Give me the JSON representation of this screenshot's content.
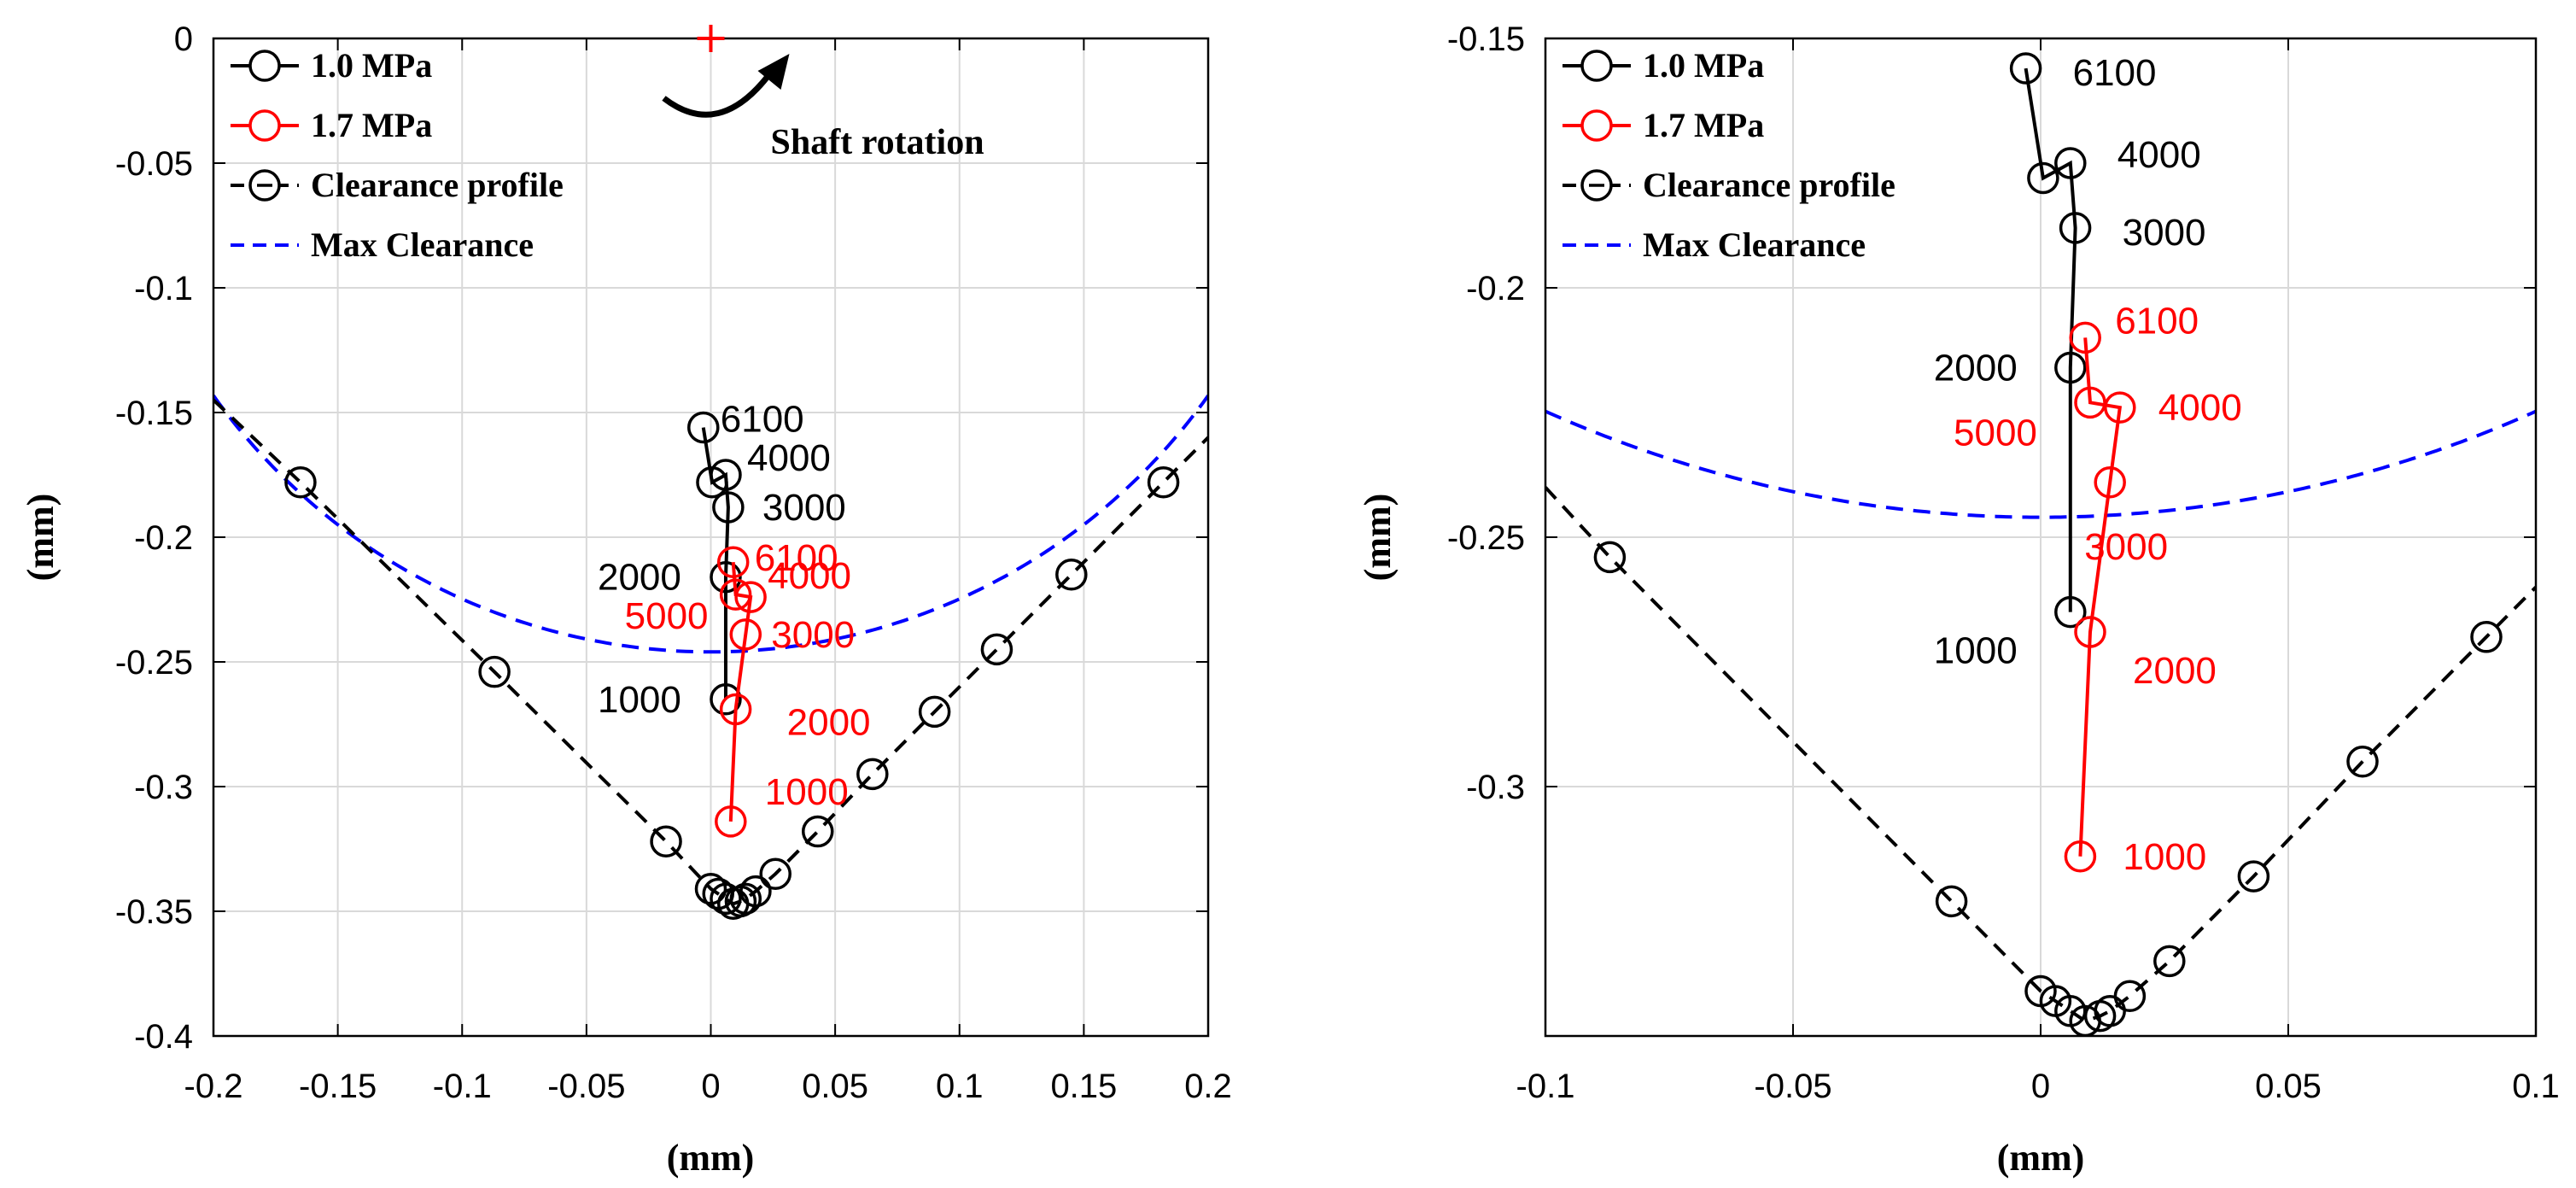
{
  "chart_data": [
    {
      "type": "line",
      "xlabel": "(mm)",
      "ylabel": "(mm)",
      "xlim": [
        -0.2,
        0.2
      ],
      "ylim": [
        -0.4,
        0
      ],
      "xticks": [
        -0.2,
        -0.15,
        -0.1,
        -0.05,
        0,
        0.05,
        0.1,
        0.15,
        0.2
      ],
      "xtick_labels": [
        "-0.2",
        "-0.15",
        "-0.1",
        "-0.05",
        "0",
        "0.05",
        "0.1",
        "0.15",
        "0.2"
      ],
      "yticks": [
        0,
        -0.05,
        -0.1,
        -0.15,
        -0.2,
        -0.25,
        -0.3,
        -0.35,
        -0.4
      ],
      "ytick_labels": [
        "0",
        "-0.05",
        "-0.1",
        "-0.15",
        "-0.2",
        "-0.25",
        "-0.3",
        "-0.35",
        "-0.4"
      ],
      "grid": true,
      "legend": [
        {
          "label": "1.0 MPa",
          "color": "#000000",
          "style": "solid-circle"
        },
        {
          "label": "1.7 MPa",
          "color": "#ff0000",
          "style": "solid-circle"
        },
        {
          "label": "Clearance profile",
          "color": "#000000",
          "style": "dashed-circle"
        },
        {
          "label": "Max Clearance",
          "color": "#0000ff",
          "style": "dashed"
        }
      ],
      "legend_position": "top-left",
      "series": [
        {
          "name": "1.0 MPa",
          "color": "#000000",
          "points": [
            {
              "x": 0.006,
              "y": -0.265,
              "label": "1000"
            },
            {
              "x": 0.006,
              "y": -0.216,
              "label": "2000"
            },
            {
              "x": 0.007,
              "y": -0.188,
              "label": "3000"
            },
            {
              "x": 0.006,
              "y": -0.175,
              "label": "4000"
            },
            {
              "x": 0.0005,
              "y": -0.178,
              "label": ""
            },
            {
              "x": -0.003,
              "y": -0.156,
              "label": "6100"
            }
          ]
        },
        {
          "name": "1.7 MPa",
          "color": "#ff0000",
          "points": [
            {
              "x": 0.008,
              "y": -0.314,
              "label": "1000"
            },
            {
              "x": 0.01,
              "y": -0.269,
              "label": "2000"
            },
            {
              "x": 0.014,
              "y": -0.239,
              "label": "3000"
            },
            {
              "x": 0.016,
              "y": -0.224,
              "label": "4000"
            },
            {
              "x": 0.01,
              "y": -0.223,
              "label": "5000"
            },
            {
              "x": 0.009,
              "y": -0.21,
              "label": "6100"
            }
          ]
        },
        {
          "name": "Clearance profile",
          "color": "#000000",
          "points": [
            {
              "x": -0.2,
              "y": -0.145
            },
            {
              "x": -0.165,
              "y": -0.178
            },
            {
              "x": -0.087,
              "y": -0.254
            },
            {
              "x": -0.018,
              "y": -0.322
            },
            {
              "x": 0.0,
              "y": -0.341
            },
            {
              "x": 0.003,
              "y": -0.343
            },
            {
              "x": 0.006,
              "y": -0.345
            },
            {
              "x": 0.009,
              "y": -0.347
            },
            {
              "x": 0.012,
              "y": -0.346
            },
            {
              "x": 0.014,
              "y": -0.345
            },
            {
              "x": 0.018,
              "y": -0.342
            },
            {
              "x": 0.026,
              "y": -0.335
            },
            {
              "x": 0.043,
              "y": -0.318
            },
            {
              "x": 0.065,
              "y": -0.295
            },
            {
              "x": 0.09,
              "y": -0.27
            },
            {
              "x": 0.115,
              "y": -0.245
            },
            {
              "x": 0.145,
              "y": -0.215
            },
            {
              "x": 0.182,
              "y": -0.178
            },
            {
              "x": 0.2,
              "y": -0.16
            }
          ]
        },
        {
          "name": "Max Clearance",
          "color": "#0000ff",
          "curve": {
            "center_x": 0.0,
            "center_y": 0.0,
            "radius": 0.246
          }
        }
      ],
      "annotations": [
        {
          "text": "Shaft rotation",
          "x": 0.07,
          "y": -0.04,
          "marker": "+",
          "marker_x": 0.0,
          "marker_y": 0.0,
          "marker_color": "#ff0000"
        }
      ]
    },
    {
      "type": "line",
      "xlabel": "(mm)",
      "ylabel": "(mm)",
      "xlim": [
        -0.1,
        0.1
      ],
      "ylim": [
        -0.35,
        -0.15
      ],
      "xticks": [
        -0.1,
        -0.05,
        0,
        0.05,
        0.1
      ],
      "xtick_labels": [
        "-0.1",
        "-0.05",
        "0",
        "0.05",
        "0.1"
      ],
      "yticks": [
        -0.15,
        -0.2,
        -0.25,
        -0.3
      ],
      "ytick_labels": [
        "-0.15",
        "-0.2",
        "-0.25",
        "-0.3"
      ],
      "grid": true,
      "legend": [
        {
          "label": "1.0 MPa",
          "color": "#000000",
          "style": "solid-circle"
        },
        {
          "label": "1.7 MPa",
          "color": "#ff0000",
          "style": "solid-circle"
        },
        {
          "label": "Clearance profile",
          "color": "#000000",
          "style": "dashed-circle"
        },
        {
          "label": "Max Clearance",
          "color": "#0000ff",
          "style": "dashed"
        }
      ],
      "legend_position": "top-left",
      "series": [
        {
          "name": "1.0 MPa",
          "color": "#000000",
          "points": [
            {
              "x": 0.006,
              "y": -0.265,
              "label": "1000"
            },
            {
              "x": 0.006,
              "y": -0.216,
              "label": "2000"
            },
            {
              "x": 0.007,
              "y": -0.188,
              "label": "3000"
            },
            {
              "x": 0.006,
              "y": -0.175,
              "label": "4000"
            },
            {
              "x": 0.0005,
              "y": -0.178,
              "label": ""
            },
            {
              "x": -0.003,
              "y": -0.156,
              "label": "6100"
            }
          ]
        },
        {
          "name": "1.7 MPa",
          "color": "#ff0000",
          "points": [
            {
              "x": 0.008,
              "y": -0.314,
              "label": "1000"
            },
            {
              "x": 0.01,
              "y": -0.269,
              "label": "2000"
            },
            {
              "x": 0.014,
              "y": -0.239,
              "label": "3000"
            },
            {
              "x": 0.016,
              "y": -0.224,
              "label": "4000"
            },
            {
              "x": 0.01,
              "y": -0.223,
              "label": "5000"
            },
            {
              "x": 0.009,
              "y": -0.21,
              "label": "6100"
            }
          ]
        },
        {
          "name": "Clearance profile",
          "color": "#000000",
          "points": [
            {
              "x": -0.1,
              "y": -0.24
            },
            {
              "x": -0.087,
              "y": -0.254
            },
            {
              "x": -0.018,
              "y": -0.323
            },
            {
              "x": 0.0,
              "y": -0.341
            },
            {
              "x": 0.003,
              "y": -0.343
            },
            {
              "x": 0.006,
              "y": -0.345
            },
            {
              "x": 0.009,
              "y": -0.347
            },
            {
              "x": 0.012,
              "y": -0.346
            },
            {
              "x": 0.014,
              "y": -0.345
            },
            {
              "x": 0.018,
              "y": -0.342
            },
            {
              "x": 0.026,
              "y": -0.335
            },
            {
              "x": 0.043,
              "y": -0.318
            },
            {
              "x": 0.065,
              "y": -0.295
            },
            {
              "x": 0.09,
              "y": -0.27
            },
            {
              "x": 0.1,
              "y": -0.26
            }
          ]
        },
        {
          "name": "Max Clearance",
          "color": "#0000ff",
          "curve": {
            "center_x": 0.0,
            "center_y": 0.0,
            "radius": 0.246
          }
        }
      ]
    }
  ]
}
